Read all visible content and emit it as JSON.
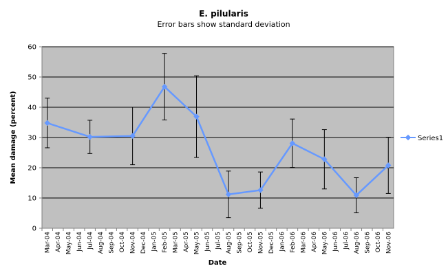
{
  "chart_data": {
    "type": "line",
    "title": "E. pilularis",
    "subtitle": "Error bars show standard deviation",
    "xlabel": "Date",
    "ylabel": "Mean damage (percent)",
    "ylim": [
      0,
      60
    ],
    "yticks": [
      0,
      10,
      20,
      30,
      40,
      50,
      60
    ],
    "grid": "horizontal major gridlines",
    "legend_position": "right",
    "plot_background": "#c0c0c0",
    "series_color": "#6699ff",
    "categories": [
      "Mar-04",
      "Apr-04",
      "May-04",
      "Jun-04",
      "Jul-04",
      "Aug-04",
      "Sep-04",
      "Oct-04",
      "Nov-04",
      "Dec-04",
      "Jan-05",
      "Feb-05",
      "Mar-05",
      "Apr-05",
      "May-05",
      "Jun-05",
      "Jul-05",
      "Aug-05",
      "Sep-05",
      "Oct-05",
      "Nov-05",
      "Dec-05",
      "Jan-06",
      "Feb-06",
      "Mar-06",
      "Apr-06",
      "May-06",
      "Jun-06",
      "Jul-06",
      "Aug-06",
      "Sep-06",
      "Oct-06",
      "Nov-06"
    ],
    "series": [
      {
        "name": "Series1",
        "points": [
          {
            "x": "Mar-04",
            "y": 34.8,
            "sd": 8.2
          },
          {
            "x": "Jul-04",
            "y": 30.2,
            "sd": 5.5
          },
          {
            "x": "Nov-04",
            "y": 30.5,
            "sd": 9.5
          },
          {
            "x": "Feb-05",
            "y": 46.8,
            "sd": 11.0
          },
          {
            "x": "May-05",
            "y": 36.9,
            "sd": 13.5
          },
          {
            "x": "Aug-05",
            "y": 11.2,
            "sd": 7.7
          },
          {
            "x": "Nov-05",
            "y": 12.6,
            "sd": 6.0
          },
          {
            "x": "Feb-06",
            "y": 28.1,
            "sd": 8.0
          },
          {
            "x": "May-06",
            "y": 22.8,
            "sd": 9.8
          },
          {
            "x": "Aug-06",
            "y": 10.9,
            "sd": 5.8
          },
          {
            "x": "Nov-06",
            "y": 20.8,
            "sd": 9.3
          }
        ]
      }
    ]
  }
}
